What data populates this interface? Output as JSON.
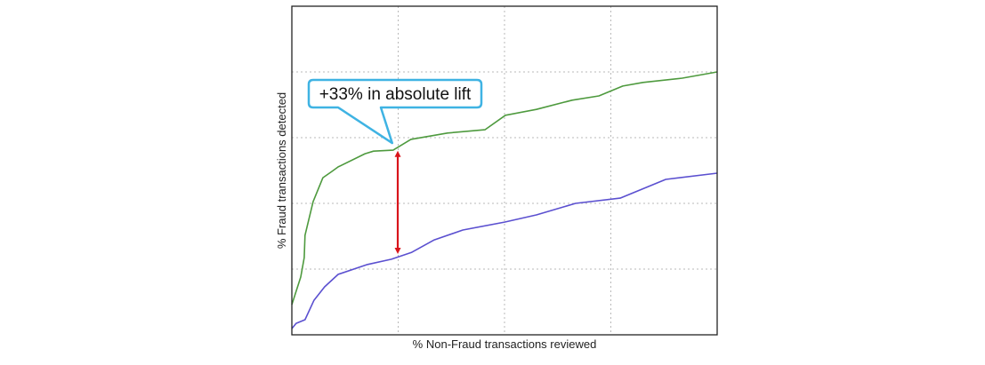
{
  "chart_data": {
    "type": "line",
    "title": "",
    "xlabel": "% Non-Fraud transactions reviewed",
    "ylabel": "% Fraud transactions detected",
    "xlim": [
      0,
      100
    ],
    "ylim": [
      0,
      100
    ],
    "grid": true,
    "tick_labels_shown": false,
    "series": [
      {
        "color": "#4e9a3e",
        "x": [
          0,
          2.1,
          2.9,
          3.1,
          5.0,
          7.3,
          9.4,
          10.9,
          17.2,
          19.2,
          23.8,
          28.0,
          36.6,
          45.4,
          50.2,
          57.5,
          65.9,
          72.2,
          77.8,
          82.6,
          91.8,
          100
        ],
        "y": [
          9.2,
          17.6,
          23.5,
          30.3,
          40.5,
          47.8,
          49.7,
          51.1,
          55.1,
          55.9,
          56.2,
          59.5,
          61.4,
          62.4,
          66.8,
          68.6,
          71.4,
          72.7,
          75.7,
          76.8,
          78.1,
          80.0
        ]
      },
      {
        "color": "#5b50d0",
        "x": [
          0,
          1.0,
          3.1,
          5.2,
          7.7,
          10.9,
          17.8,
          23.4,
          28.2,
          33.5,
          40.2,
          50.0,
          57.5,
          66.7,
          77.2,
          87.9,
          100
        ],
        "y": [
          1.9,
          3.5,
          4.6,
          10.5,
          14.6,
          18.4,
          21.4,
          23.0,
          25.1,
          28.9,
          31.9,
          34.3,
          36.5,
          40.0,
          41.6,
          47.3,
          49.2
        ]
      }
    ],
    "annotations": [
      {
        "type": "callout",
        "text": "+33% in absolute lift",
        "border_color": "#3fb3e3",
        "points_to": {
          "x": 23.8,
          "y": 56.2
        }
      },
      {
        "type": "double-arrow",
        "color": "#d9151c",
        "x": 24.9,
        "y_from": 56.0,
        "y_to": 24.6
      }
    ]
  }
}
